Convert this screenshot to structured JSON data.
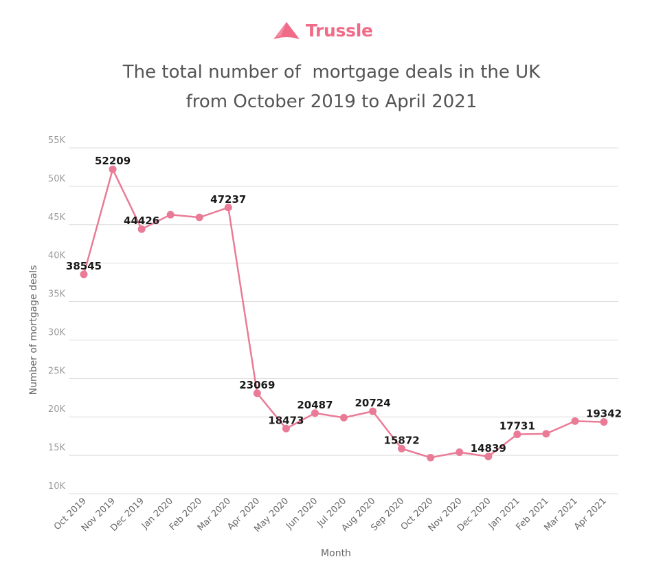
{
  "brand": {
    "name": "Trussle",
    "logo_icon": "trussle-fan-icon",
    "color": "#f06b87"
  },
  "title_lines": [
    "The total number of  mortgage deals in the UK",
    "from October 2019 to April 2021"
  ],
  "chart_data": {
    "type": "line",
    "title": "The total number of  mortgage deals in the UK from October 2019 to April 2021",
    "xlabel": "Month",
    "ylabel": "Number of mortgage deals",
    "ylim": [
      10000,
      55000
    ],
    "yticks": [
      10000,
      15000,
      20000,
      25000,
      30000,
      35000,
      40000,
      45000,
      50000,
      55000
    ],
    "ytick_labels": [
      "10K",
      "15K",
      "20K",
      "25K",
      "30K",
      "35K",
      "40K",
      "45K",
      "50K",
      "55K"
    ],
    "grid": true,
    "line_color": "#ea7b96",
    "marker_color": "#ea7b96",
    "categories": [
      "Oct 2019",
      "Nov 2019",
      "Dec 2019",
      "Jan 2020",
      "Feb 2020",
      "Mar 2020",
      "Apr 2020",
      "May 2020",
      "Jun 2020",
      "Jul 2020",
      "Aug 2020",
      "Sep 2020",
      "Oct 2020",
      "Nov 2020",
      "Dec 2020",
      "Jan 2021",
      "Feb 2021",
      "Mar 2021",
      "Apr 2021"
    ],
    "values": [
      38545,
      52209,
      44426,
      46300,
      45950,
      47237,
      23069,
      18473,
      20487,
      19900,
      20724,
      15872,
      14700,
      15400,
      14839,
      17731,
      17800,
      19450,
      19342
    ],
    "data_labels": [
      "38545",
      "52209",
      "44426",
      null,
      null,
      "47237",
      "23069",
      "18473",
      "20487",
      null,
      "20724",
      "15872",
      null,
      null,
      "14839",
      "17731",
      null,
      null,
      "19342"
    ]
  }
}
